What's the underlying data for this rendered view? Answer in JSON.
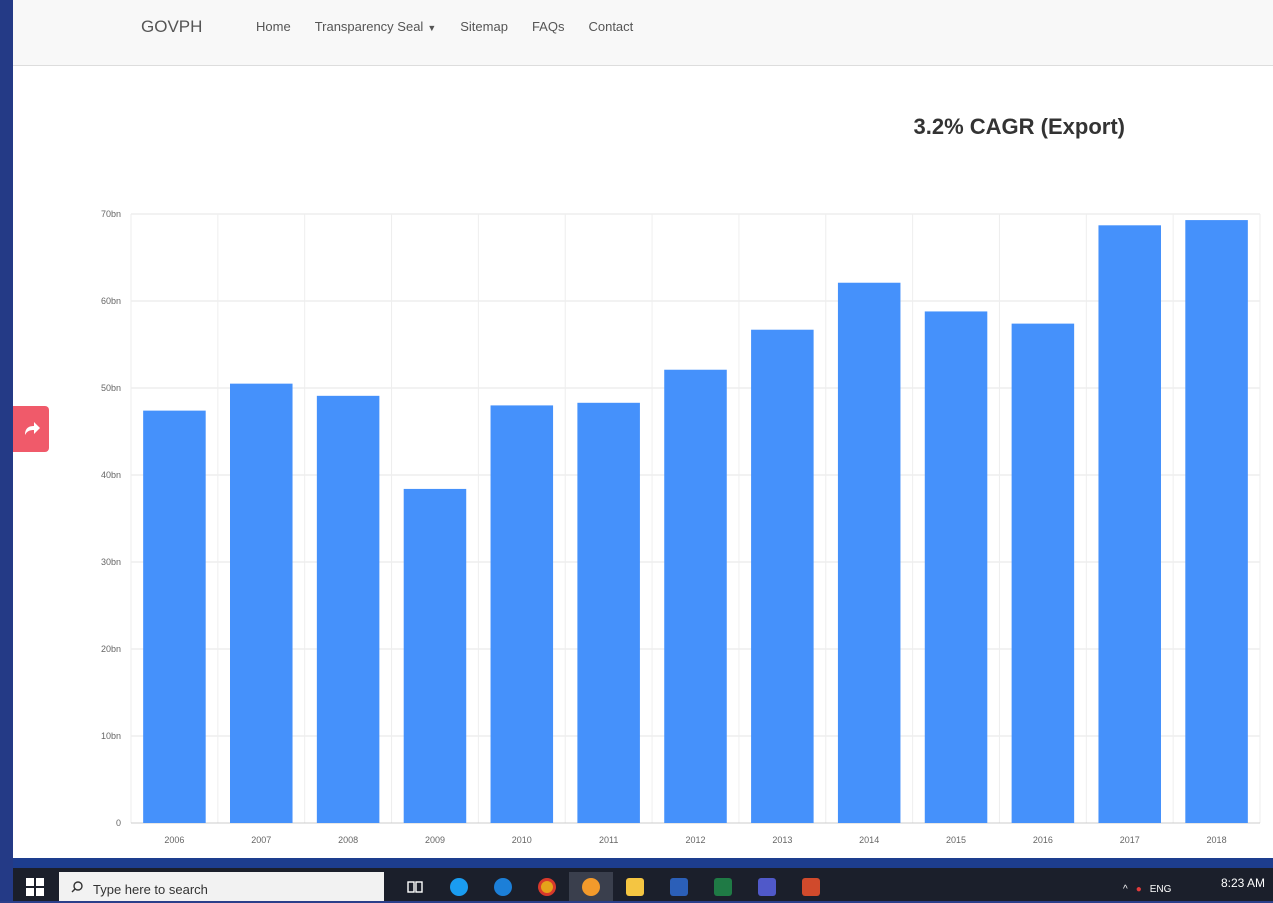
{
  "navbar": {
    "brand": "GOVPH",
    "links": [
      "Home",
      "Transparency Seal",
      "Sitemap",
      "FAQs",
      "Contact"
    ]
  },
  "chart_data": {
    "type": "bar",
    "title": "3.2% CAGR (Export)",
    "categories": [
      "2006",
      "2007",
      "2008",
      "2009",
      "2010",
      "2011",
      "2012",
      "2013",
      "2014",
      "2015",
      "2016",
      "2017",
      "2018"
    ],
    "values": [
      47.4,
      50.5,
      49.1,
      38.4,
      48.0,
      48.3,
      52.1,
      56.7,
      62.1,
      58.8,
      57.4,
      68.7,
      69.3
    ],
    "y_ticks": [
      "0",
      "10bn",
      "20bn",
      "30bn",
      "40bn",
      "50bn",
      "60bn",
      "70bn"
    ],
    "ylim": [
      0,
      70
    ],
    "grid": true,
    "bar_color": "#4591fb"
  },
  "taskbar": {
    "search_placeholder": "Type here to search",
    "time": "8:23 AM",
    "lang": "ENG",
    "apps": [
      "task-view-icon",
      "skype-icon",
      "edge-icon",
      "chrome-icon",
      "firefox-icon",
      "file-explorer-icon",
      "word-icon",
      "excel-icon",
      "teams-icon",
      "powerpoint-icon"
    ]
  },
  "colors": {
    "skype": "#1a9cf0",
    "edge": "#1c7fd8",
    "chrome": "#e5a21a",
    "firefox": "#f39a2b",
    "explorer": "#f4c542",
    "word": "#2b5fb8",
    "excel": "#1f7a45",
    "teams": "#5059c9",
    "powerpoint": "#d04a2c"
  }
}
